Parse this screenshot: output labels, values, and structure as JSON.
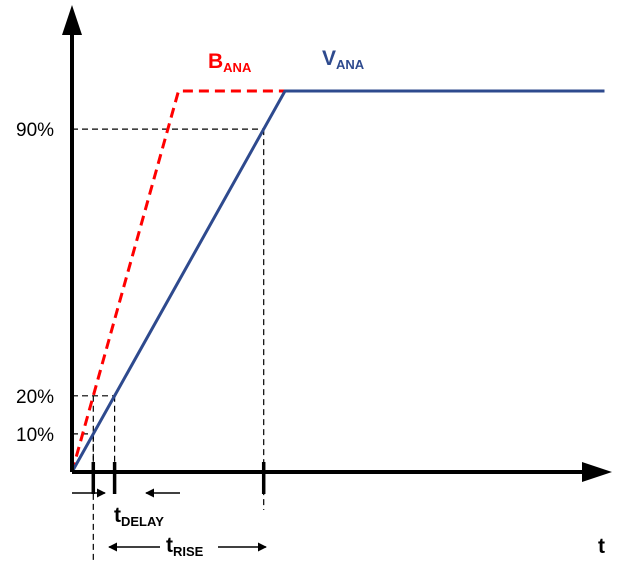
{
  "chart_data": {
    "type": "line",
    "title": "",
    "xlabel": "t",
    "ylabel": "",
    "y_levels": [
      {
        "label": "10%",
        "value": 10
      },
      {
        "label": "20%",
        "value": 20
      },
      {
        "label": "90%",
        "value": 90
      }
    ],
    "series": [
      {
        "name_main": "B",
        "name_sub": "ANA",
        "style": "dashed",
        "color": "#ff0000",
        "points": [
          [
            0,
            0
          ],
          [
            1,
            100
          ],
          [
            3.1,
            100
          ]
        ]
      },
      {
        "name_main": "V",
        "name_sub": "ANA",
        "style": "solid",
        "color": "#2e4a8e",
        "points": [
          [
            0,
            0
          ],
          [
            2,
            100
          ],
          [
            5,
            100
          ]
        ]
      }
    ],
    "intervals": [
      {
        "main": "t",
        "sub": "DELAY"
      },
      {
        "main": "t",
        "sub": "RISE"
      }
    ]
  },
  "colors": {
    "axis": "#000000",
    "guide": "#000000"
  }
}
